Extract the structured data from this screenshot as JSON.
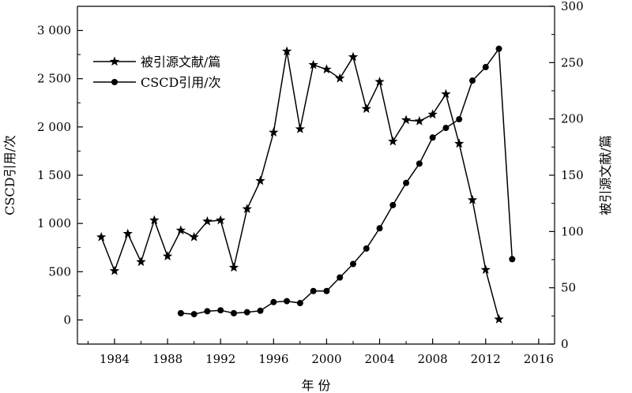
{
  "chart_data": {
    "type": "line",
    "xlabel": "年 份",
    "ylabel_left": "CSCD引用/次",
    "ylabel_right": "被引源文献/篇",
    "xlim": [
      1981.2,
      2017.2
    ],
    "xticks": [
      1984,
      1988,
      1992,
      1996,
      2000,
      2004,
      2008,
      2012,
      2016
    ],
    "xtick_labels": [
      "1984",
      "1988",
      "1992",
      "1996",
      "2000",
      "2004",
      "2008",
      "2012",
      "2016"
    ],
    "ylim_left": [
      -250,
      3250
    ],
    "yticks_left": [
      0,
      500,
      1000,
      1500,
      2000,
      2500,
      3000
    ],
    "ytick_labels_left": [
      "0",
      "500",
      "1 000",
      "1 500",
      "2 000",
      "2 500",
      "3 000"
    ],
    "ylim_right": [
      0,
      300
    ],
    "yticks_right": [
      0,
      50,
      100,
      150,
      200,
      250,
      300
    ],
    "ytick_labels_right": [
      "0",
      "50",
      "100",
      "150",
      "200",
      "250",
      "300"
    ],
    "legend_position": "top-left",
    "grid": false,
    "series": [
      {
        "name": "被引源文献/篇",
        "axis": "right",
        "marker": "star",
        "x": [
          1983,
          1984,
          1985,
          1986,
          1987,
          1988,
          1989,
          1990,
          1991,
          1992,
          1993,
          1994,
          1995,
          1996,
          1997,
          1998,
          1999,
          2000,
          2001,
          2002,
          2003,
          2004,
          2005,
          2006,
          2007,
          2008,
          2009,
          2010,
          2011,
          2012,
          2013
        ],
        "y": [
          95,
          65,
          98,
          73,
          110,
          78,
          101,
          95,
          109,
          110,
          68,
          120,
          145,
          188,
          260,
          191,
          248,
          244,
          236,
          255,
          209,
          233,
          180,
          199,
          198,
          204,
          222,
          178,
          128,
          66,
          22
        ]
      },
      {
        "name": "CSCD引用/次",
        "axis": "left",
        "marker": "circle",
        "x": [
          1989,
          1990,
          1991,
          1992,
          1993,
          1994,
          1995,
          1996,
          1997,
          1998,
          1999,
          2000,
          2001,
          2002,
          2003,
          2004,
          2005,
          2006,
          2007,
          2008,
          2009,
          2010,
          2011,
          2012,
          2013,
          2014
        ],
        "y": [
          70,
          60,
          90,
          100,
          70,
          80,
          95,
          185,
          195,
          175,
          300,
          300,
          440,
          580,
          740,
          950,
          1190,
          1420,
          1620,
          1890,
          1990,
          2080,
          2480,
          2620,
          2810,
          630
        ]
      }
    ]
  }
}
